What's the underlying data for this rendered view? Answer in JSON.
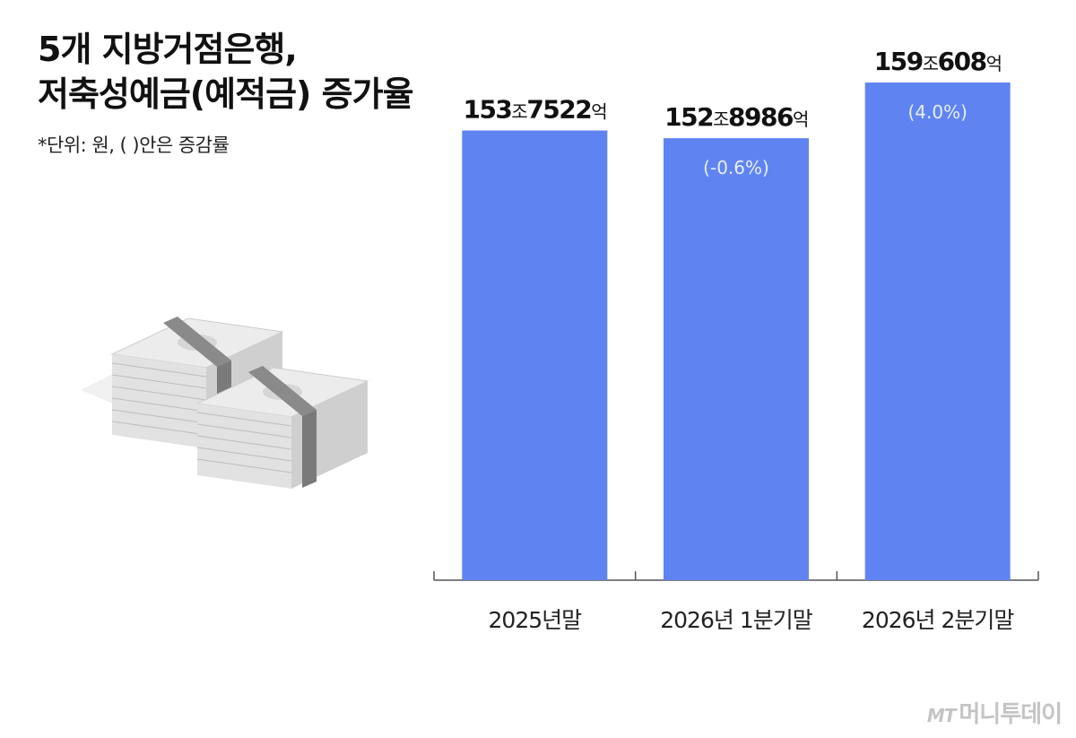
{
  "title_line1": "5개 지방거점은행,",
  "title_line2": "저축성예금(예적금) 증가율",
  "unit_note": "*단위: 원, ( )안은 증감률",
  "logo": {
    "mark": "MT",
    "name": "머니투데이"
  },
  "colors": {
    "bar": "#5f84f2",
    "axis": "#555555",
    "pct_text": "#e8eeff"
  },
  "chart_data": {
    "type": "bar",
    "categories": [
      "2025년말",
      "2026년 1분기말",
      "2026년 2분기말"
    ],
    "values": [
      153.7522,
      152.8986,
      159.0608
    ],
    "value_labels": [
      {
        "num1": "153",
        "u1": "조",
        "num2": "7522",
        "u2": "억"
      },
      {
        "num1": "152",
        "u1": "조",
        "num2": "8986",
        "u2": "억"
      },
      {
        "num1": "159",
        "u1": "조",
        "num2": "608",
        "u2": "억"
      }
    ],
    "change_labels": [
      "",
      "(-0.6%)",
      "(4.0%)"
    ],
    "ylim": [
      0,
      170
    ],
    "grid": false,
    "legend": "none"
  }
}
